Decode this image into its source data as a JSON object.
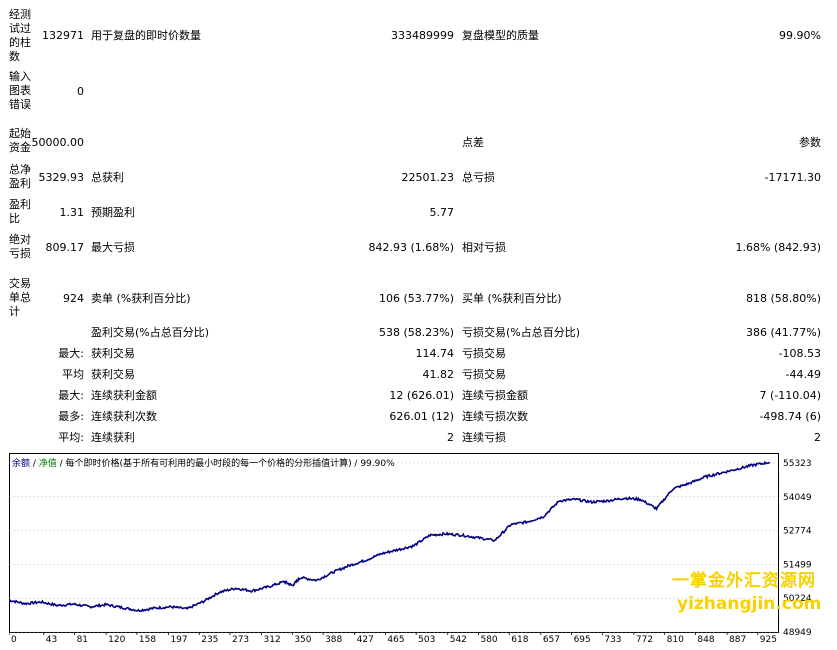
{
  "report": {
    "r1": {
      "label": "经测试过的柱数",
      "v1": "132971",
      "l2": "用于复盘的即时价数量",
      "v2": "333489999",
      "l3": "复盘模型的质量",
      "v3": "99.90%"
    },
    "r2": {
      "label": "输入图表错误",
      "v1": "0"
    },
    "r3": {
      "label": "起始资金",
      "v1": "50000.00",
      "l3": "点差",
      "v3": "参数"
    },
    "r4": {
      "label": "总净盈利",
      "v1": "5329.93",
      "l2": "总获利",
      "v2": "22501.23",
      "l3": "总亏损",
      "v3": "-17171.30"
    },
    "r5": {
      "label": "盈利比",
      "v1": "1.31",
      "l2": "预期盈利",
      "v2": "5.77"
    },
    "r6": {
      "label": "绝对亏损",
      "v1": "809.17",
      "l2": "最大亏损",
      "v2": "842.93 (1.68%)",
      "l3": "相对亏损",
      "v3": "1.68% (842.93)"
    },
    "r7": {
      "label": "交易单总计",
      "v1": "924",
      "l2": "卖单 (%获利百分比)",
      "v2": "106 (53.77%)",
      "l3": "买单 (%获利百分比)",
      "v3": "818 (58.80%)"
    },
    "r8": {
      "l2": "盈利交易(%占总百分比)",
      "v2": "538 (58.23%)",
      "l3": "亏损交易(%占总百分比)",
      "v3": "386 (41.77%)"
    },
    "r9": {
      "prefix": "最大:",
      "l2": "获利交易",
      "v2": "114.74",
      "l3": "亏损交易",
      "v3": "-108.53"
    },
    "r10": {
      "prefix": "平均",
      "l2": "获利交易",
      "v2": "41.82",
      "l3": "亏损交易",
      "v3": "-44.49"
    },
    "r11": {
      "prefix": "最大:",
      "l2": "连续获利金额",
      "v2": "12 (626.01)",
      "l3": "连续亏损金额",
      "v3": "7 (-110.04)"
    },
    "r12": {
      "prefix": "最多:",
      "l2": "连续获利次数",
      "v2": "626.01 (12)",
      "l3": "连续亏损次数",
      "v3": "-498.74 (6)"
    },
    "r13": {
      "prefix": "平均:",
      "l2": "连续获利",
      "v2": "2",
      "l3": "连续亏损",
      "v3": "2"
    }
  },
  "legend": {
    "balance": "余额",
    "sep1": " / ",
    "equity": "净值",
    "rest": " / 每个即时价格(基于所有可利用的最小时段的每一个价格的分形插值计算) / 99.90%"
  },
  "watermark": {
    "line1": "一掌金外汇资源网",
    "line2": "yizhangjin.com"
  },
  "colors": {
    "line": "#000080",
    "grid": "#c0c0c0",
    "watermark": "#f7d100"
  },
  "chart_data": {
    "type": "line",
    "x_ticks": [
      "0",
      "43",
      "81",
      "120",
      "158",
      "197",
      "235",
      "273",
      "312",
      "350",
      "388",
      "427",
      "465",
      "503",
      "542",
      "580",
      "618",
      "657",
      "695",
      "733",
      "772",
      "810",
      "848",
      "887",
      "925"
    ],
    "y_ticks": [
      "55323",
      "54049",
      "52774",
      "51499",
      "50224",
      "48949"
    ],
    "ylim": [
      48949,
      55700
    ],
    "xlim": [
      0,
      950
    ],
    "series": [
      {
        "x": [
          0,
          20,
          40,
          60,
          80,
          100,
          120,
          140,
          160,
          180,
          200,
          220,
          240,
          260,
          280,
          300,
          320,
          340,
          350,
          360,
          380,
          400,
          420,
          440,
          460,
          480,
          500,
          520,
          540,
          560,
          580,
          600,
          620,
          640,
          660,
          680,
          700,
          720,
          740,
          760,
          780,
          800,
          820,
          840,
          860,
          880,
          900,
          920,
          940
        ],
        "values": [
          50150,
          50020,
          50080,
          49950,
          50000,
          49900,
          49980,
          49870,
          49760,
          49850,
          49900,
          49820,
          50100,
          50450,
          50600,
          50500,
          50650,
          50850,
          50700,
          51000,
          50900,
          51200,
          51450,
          51650,
          51900,
          52050,
          52200,
          52600,
          52650,
          52600,
          52500,
          52400,
          53000,
          53100,
          53300,
          53900,
          53950,
          53850,
          53900,
          54000,
          53950,
          53600,
          54350,
          54550,
          54800,
          54950,
          55100,
          55250,
          55350
        ]
      }
    ]
  }
}
